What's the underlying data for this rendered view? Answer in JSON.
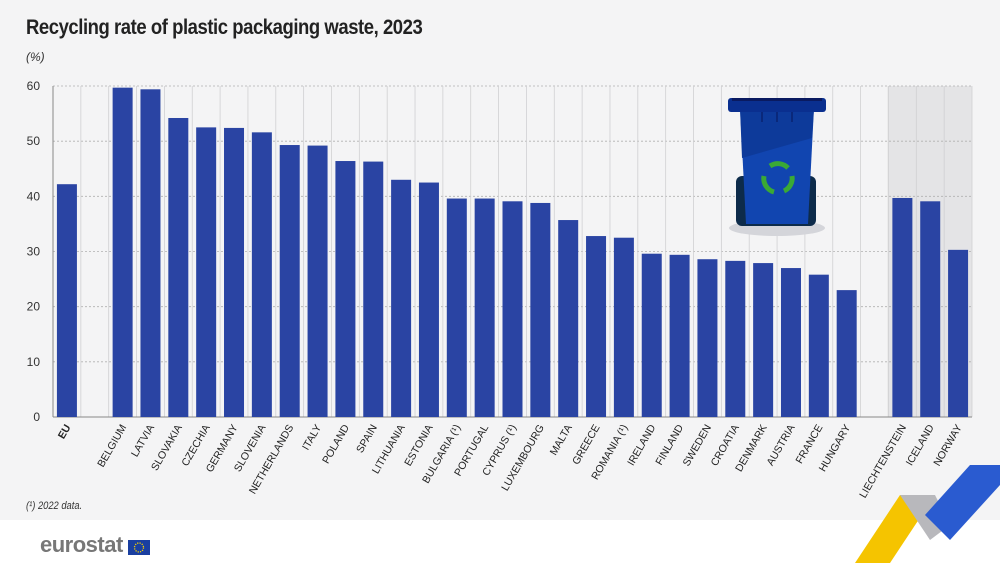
{
  "title": "Recycling rate of plastic packaging waste, 2023",
  "unit": "(%)",
  "footnote": "(¹) 2022 data.",
  "logo": "eurostat",
  "colors": {
    "bar": "#2a44a3",
    "background": "#f4f4f5",
    "non_eu_shade": "#e4e4e6",
    "recycle_symbol": "#3aa935"
  },
  "icons": [
    "recycling-bin-icon",
    "eu-flag-icon"
  ],
  "chart_data": {
    "type": "bar",
    "title": "Recycling rate of plastic packaging waste, 2023",
    "ylabel": "(%)",
    "ylim": [
      0,
      60
    ],
    "yticks": [
      0,
      10,
      20,
      30,
      40,
      50,
      60
    ],
    "grid": true,
    "categories": [
      "EU",
      "",
      "BELGIUM",
      "LATVIA",
      "SLOVAKIA",
      "CZECHIA",
      "GERMANY",
      "SLOVENIA",
      "NETHERLANDS",
      "ITALY",
      "POLAND",
      "SPAIN",
      "LITHUANIA",
      "ESTONIA",
      "BULGARIA (¹)",
      "PORTUGAL",
      "CYPRUS (¹)",
      "LUXEMBOURG",
      "MALTA",
      "GREECE",
      "ROMANIA (¹)",
      "IRELAND",
      "FINLAND",
      "SWEDEN",
      "CROATIA",
      "DENMARK",
      "AUSTRIA",
      "FRANCE",
      "HUNGARY",
      "",
      "LIECHTENSTEIN",
      "ICELAND",
      "NORWAY"
    ],
    "values": [
      42.2,
      null,
      59.7,
      59.4,
      54.2,
      52.5,
      52.4,
      51.6,
      49.3,
      49.2,
      46.4,
      46.3,
      43.0,
      42.5,
      39.6,
      39.6,
      39.1,
      38.8,
      35.7,
      32.8,
      32.5,
      29.6,
      29.4,
      28.6,
      28.3,
      27.9,
      27.0,
      25.8,
      23.0,
      null,
      39.7,
      39.1,
      30.3
    ]
  }
}
